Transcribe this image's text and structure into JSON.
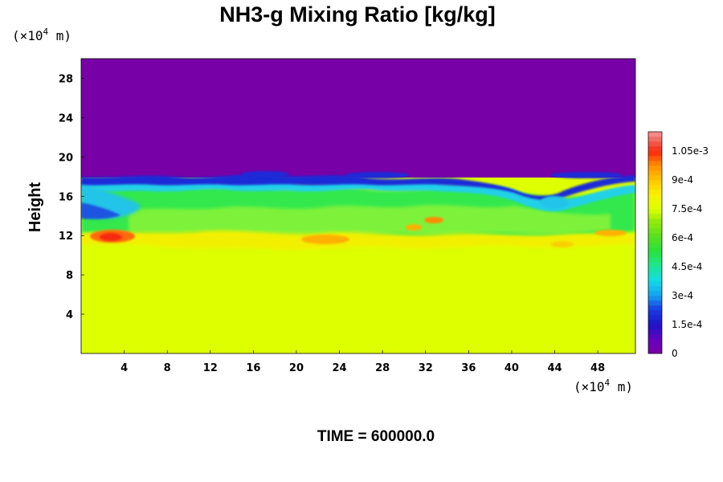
{
  "chart_data": {
    "type": "heatmap",
    "title": "NH3-g Mixing Ratio [kg/kg]",
    "ylabel": "Height",
    "x_unit": {
      "prefix": "(×10",
      "exp": "4",
      "suffix": " m)"
    },
    "y_unit": {
      "prefix": "(×10",
      "exp": "4",
      "suffix": " m)"
    },
    "time_label": "TIME = 600000.0",
    "xlim": [
      0,
      51.5
    ],
    "ylim": [
      0,
      30
    ],
    "x_ticks": [
      "4",
      "8",
      "12",
      "16",
      "20",
      "24",
      "28",
      "32",
      "36",
      "40",
      "44",
      "48"
    ],
    "y_ticks": [
      "4",
      "8",
      "12",
      "16",
      "20",
      "24",
      "28"
    ],
    "colorbar": {
      "range": [
        0,
        0.00115
      ],
      "labels": [
        "0",
        "1.5e-4",
        "3e-4",
        "4.5e-4",
        "6e-4",
        "7.5e-4",
        "9e-4",
        "1.05e-3"
      ],
      "label_values": [
        0,
        0.00015,
        0.0003,
        0.00045,
        0.0006,
        0.00075,
        0.0009,
        0.00105
      ]
    },
    "regions": [
      {
        "description_value": 0,
        "y_from": 18,
        "y_to": 30
      },
      {
        "description_value": 0.00075,
        "y_from": 0,
        "y_to": 11.5
      }
    ]
  }
}
